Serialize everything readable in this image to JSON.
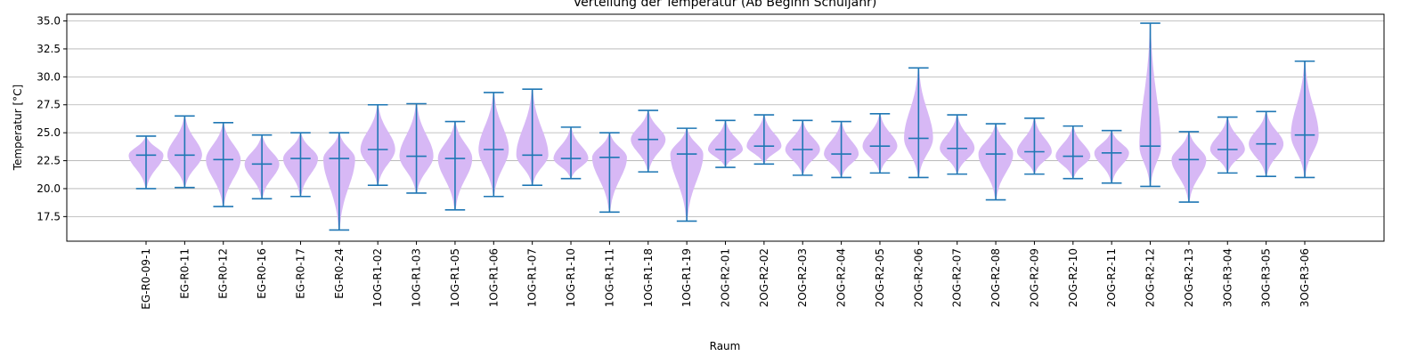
{
  "chart_data": {
    "type": "violin",
    "title": "Verteilung der Temperatur (Ab Beginn Schuljahr)",
    "xlabel": "Raum",
    "ylabel": "Temperatur [°C]",
    "ylim": [
      15.3,
      35.6
    ],
    "yticks": [
      17.5,
      20.0,
      22.5,
      25.0,
      27.5,
      30.0,
      32.5,
      35.0
    ],
    "ytick_labels": [
      "17.5",
      "20.0",
      "22.5",
      "25.0",
      "27.5",
      "30.0",
      "32.5",
      "35.0"
    ],
    "grid": "y",
    "colors": {
      "violin_fill": "#d7b8f5",
      "line": "#1f77b4",
      "grid": "#b0b0b0"
    },
    "categories": [
      "EG-R0-09-1",
      "EG-R0-11",
      "EG-R0-12",
      "EG-R0-16",
      "EG-R0-17",
      "EG-R0-24",
      "1OG-R1-02",
      "1OG-R1-03",
      "1OG-R1-05",
      "1OG-R1-06",
      "1OG-R1-07",
      "1OG-R1-10",
      "1OG-R1-11",
      "1OG-R1-18",
      "1OG-R1-19",
      "2OG-R2-01",
      "2OG-R2-02",
      "2OG-R2-03",
      "2OG-R2-04",
      "2OG-R2-05",
      "2OG-R2-06",
      "2OG-R2-07",
      "2OG-R2-08",
      "2OG-R2-09",
      "2OG-R2-10",
      "2OG-R2-11",
      "2OG-R2-12",
      "2OG-R2-13",
      "3OG-R3-04",
      "3OG-R3-05",
      "3OG-R3-06"
    ],
    "min": [
      20.0,
      20.1,
      18.4,
      19.1,
      19.3,
      16.3,
      20.3,
      19.6,
      18.1,
      19.3,
      20.3,
      20.9,
      17.9,
      21.5,
      17.1,
      21.9,
      22.2,
      21.2,
      21.0,
      21.4,
      21.0,
      21.3,
      19.0,
      21.3,
      20.9,
      20.5,
      20.2,
      18.8,
      21.4,
      21.1,
      21.0
    ],
    "max": [
      24.7,
      26.5,
      25.9,
      24.8,
      25.0,
      25.0,
      27.5,
      27.6,
      26.0,
      28.6,
      28.9,
      25.5,
      25.0,
      27.0,
      25.4,
      26.1,
      26.6,
      26.1,
      26.0,
      26.7,
      30.8,
      26.6,
      25.8,
      26.3,
      25.6,
      25.2,
      34.8,
      25.1,
      26.4,
      26.9,
      31.4
    ],
    "median": [
      23.0,
      23.0,
      22.6,
      22.2,
      22.7,
      22.7,
      23.5,
      22.9,
      22.7,
      23.5,
      23.0,
      22.7,
      22.8,
      24.4,
      23.1,
      23.5,
      23.8,
      23.5,
      23.1,
      23.8,
      24.5,
      23.6,
      23.1,
      23.3,
      22.9,
      23.2,
      23.8,
      22.6,
      23.5,
      24.0,
      24.8
    ]
  }
}
